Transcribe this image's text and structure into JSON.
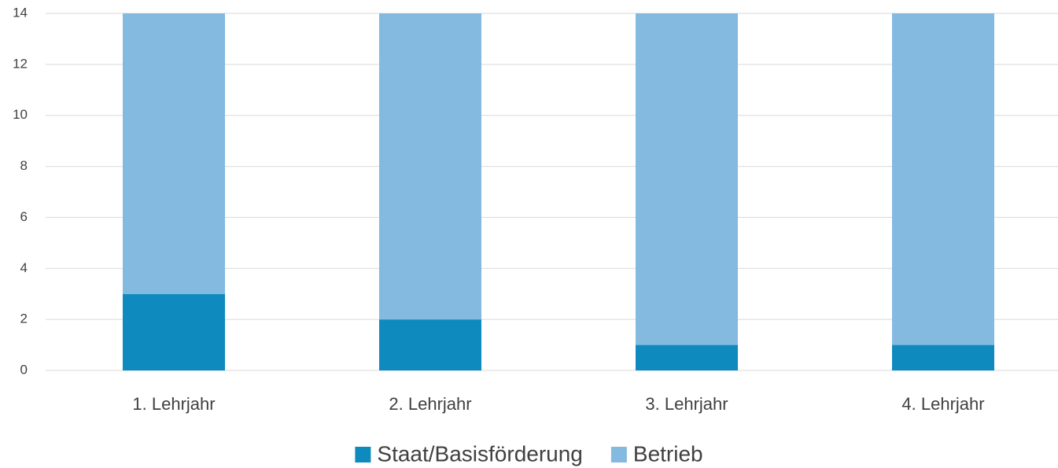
{
  "chart_data": {
    "type": "stacked_bar",
    "categories": [
      "1. Lehrjahr",
      "2. Lehrjahr",
      "3. Lehrjahr",
      "4. Lehrjahr"
    ],
    "series": [
      {
        "name": "Staat/Basisförderung",
        "color": "#0e8abe",
        "values": [
          3,
          2,
          1,
          1
        ]
      },
      {
        "name": "Betrieb",
        "color": "#84b9e0",
        "values": [
          11,
          12,
          13,
          13
        ]
      }
    ],
    "ylim": [
      0,
      14
    ],
    "yticks": [
      0,
      2,
      4,
      6,
      8,
      10,
      12,
      14
    ],
    "grid": true,
    "legend": "bottom"
  }
}
